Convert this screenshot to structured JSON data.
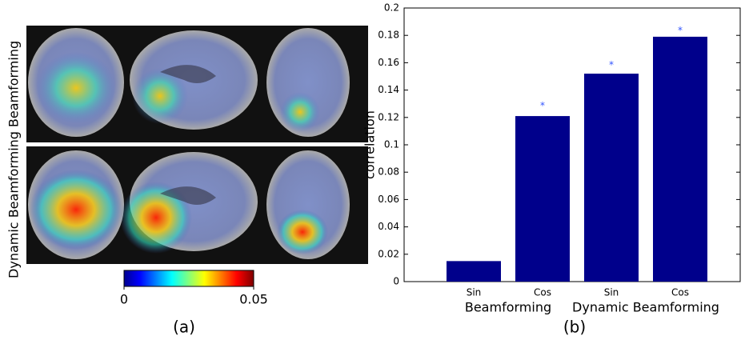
{
  "figure_a": {
    "row_labels": [
      "Beamforming",
      "Dynamic Beamforming"
    ],
    "colorbar_ticks": [
      0,
      0.05
    ],
    "caption": "(a)"
  },
  "chart_data": {
    "type": "bar",
    "ylabel": "correlation",
    "caption": "(b)",
    "categories": [
      "Sin",
      "Cos",
      "Sin",
      "Cos"
    ],
    "groups": [
      "Beamforming",
      "Dynamic Beamforming"
    ],
    "values": [
      0.015,
      0.121,
      0.152,
      0.179
    ],
    "color": "#00008b",
    "markers": {
      "label": "*",
      "color": "#3355ff",
      "values": [
        null,
        0.13,
        0.16,
        0.185
      ]
    },
    "ylim": [
      0,
      0.2
    ],
    "yticks": [
      0,
      0.02,
      0.04,
      0.06,
      0.08,
      0.1,
      0.12,
      0.14,
      0.16,
      0.18,
      0.2
    ],
    "grid": false
  }
}
